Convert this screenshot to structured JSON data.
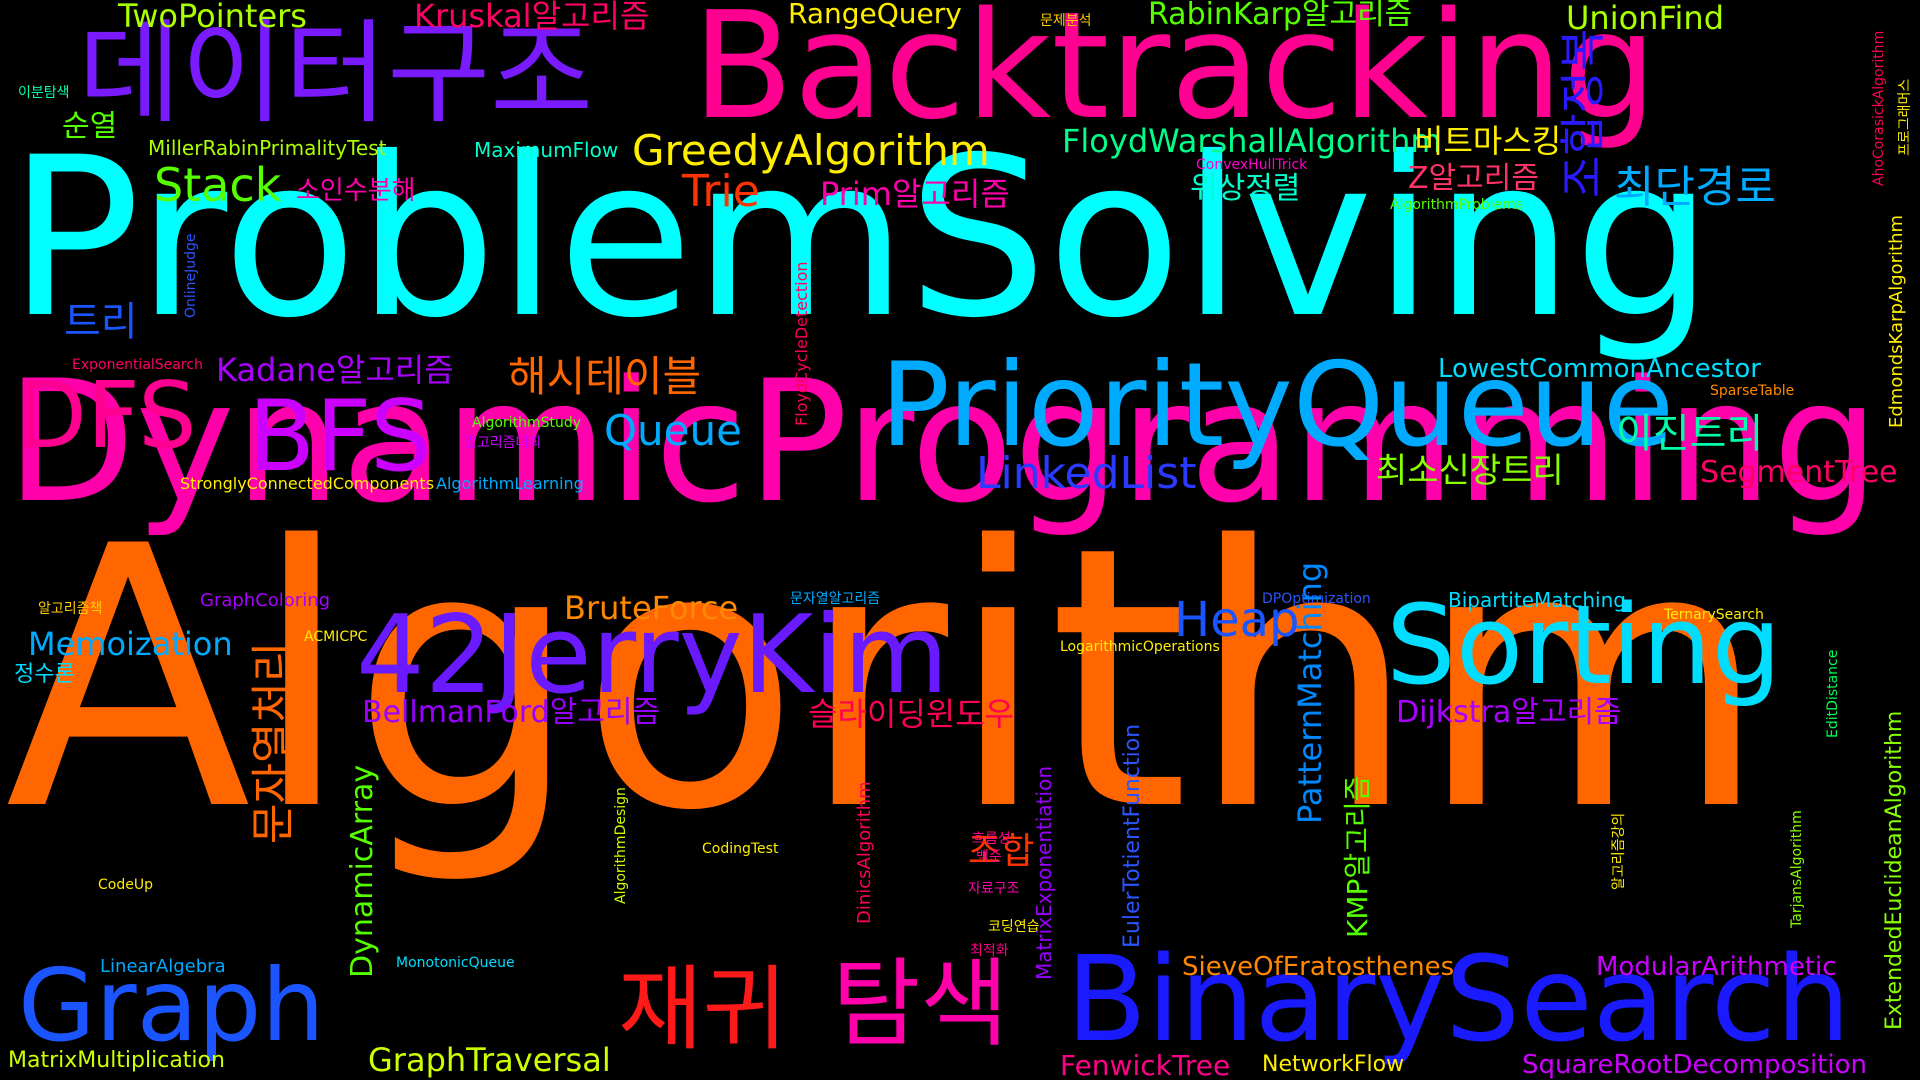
{
  "words": [
    {
      "text": "Algorithm",
      "color": "#ff6600"
    },
    {
      "text": "ProblemSolving",
      "color": "#00ffff"
    },
    {
      "text": "DynamicProgramming",
      "color": "#ff00aa"
    },
    {
      "text": "Backtracking",
      "color": "#ff0090"
    },
    {
      "text": "데이터구조",
      "color": "#7a1aff"
    },
    {
      "text": "PriorityQueue",
      "color": "#00aaff"
    },
    {
      "text": "BinarySearch",
      "color": "#1a1aff"
    },
    {
      "text": "42JerryKim",
      "color": "#6a1aff"
    },
    {
      "text": "Sorting",
      "color": "#00ddff"
    },
    {
      "text": "Graph",
      "color": "#1a55ff"
    },
    {
      "text": "재귀",
      "color": "#ff1a1a"
    },
    {
      "text": "탐색",
      "color": "#ff00aa"
    },
    {
      "text": "DFS",
      "color": "#ff0090"
    },
    {
      "text": "BFS",
      "color": "#cc00ff"
    },
    {
      "text": "TwoPointers",
      "color": "#aaff00"
    },
    {
      "text": "Kruskal알고리즘",
      "color": "#ff0066"
    },
    {
      "text": "RangeQuery",
      "color": "#ffee00"
    },
    {
      "text": "문제분석",
      "color": "#ffcc00"
    },
    {
      "text": "RabinKarp알고리즘",
      "color": "#55ff00"
    },
    {
      "text": "UnionFind",
      "color": "#aaff00"
    },
    {
      "text": "이분탐색",
      "color": "#00ffaa"
    },
    {
      "text": "AhoCorasickAlgorithm",
      "color": "#ff0055"
    },
    {
      "text": "프로그래머스",
      "color": "#ffee00"
    },
    {
      "text": "조합정복",
      "color": "#2a1aff"
    },
    {
      "text": "순열",
      "color": "#55ff00"
    },
    {
      "text": "MillerRabinPrimalityTest",
      "color": "#aaff00"
    },
    {
      "text": "MaximumFlow",
      "color": "#00ffcc"
    },
    {
      "text": "GreedyAlgorithm",
      "color": "#ffee00"
    },
    {
      "text": "FloydWarshallAlgorithm",
      "color": "#00ff88"
    },
    {
      "text": "비트마스킹",
      "color": "#ffee00"
    },
    {
      "text": "Stack",
      "color": "#55ff00"
    },
    {
      "text": "소인수분해",
      "color": "#ff00aa"
    },
    {
      "text": "Trie",
      "color": "#ff3300"
    },
    {
      "text": "Prim알고리즘",
      "color": "#ff00aa"
    },
    {
      "text": "ConvexHullTrick",
      "color": "#ff00cc"
    },
    {
      "text": "위상정렬",
      "color": "#00ffcc"
    },
    {
      "text": "Z알고리즘",
      "color": "#ff3366"
    },
    {
      "text": "AlgorithmProblems",
      "color": "#55ff00"
    },
    {
      "text": "최단경로",
      "color": "#00aaff"
    },
    {
      "text": "EdmondsKarpAlgorithm",
      "color": "#ffee00"
    },
    {
      "text": "OnlineJudge",
      "color": "#2a55ff"
    },
    {
      "text": "트리",
      "color": "#1a55ff"
    },
    {
      "text": "FloydCycleDetection",
      "color": "#ff0055"
    },
    {
      "text": "ExponentialSearch",
      "color": "#ff0066"
    },
    {
      "text": "Kadane알고리즘",
      "color": "#aa00ff"
    },
    {
      "text": "해시테이블",
      "color": "#ff6600"
    },
    {
      "text": "LowestCommonAncestor",
      "color": "#00ddff"
    },
    {
      "text": "SparseTable",
      "color": "#ff8800"
    },
    {
      "text": "Queue",
      "color": "#00aaff"
    },
    {
      "text": "AlgorithmStudy",
      "color": "#55ff00"
    },
    {
      "text": "알고리즘대회",
      "color": "#cc00ff"
    },
    {
      "text": "이진트리",
      "color": "#00ffaa"
    },
    {
      "text": "LinkedList",
      "color": "#2a3aff"
    },
    {
      "text": "최소신장트리",
      "color": "#88ff00"
    },
    {
      "text": "StronglyConnectedComponents",
      "color": "#ffee00"
    },
    {
      "text": "AlgorithmLearning",
      "color": "#00aaff"
    },
    {
      "text": "SegmentTree",
      "color": "#ff0066"
    },
    {
      "text": "알고리즘책",
      "color": "#ffcc00"
    },
    {
      "text": "GraphColoring",
      "color": "#aa00ff"
    },
    {
      "text": "BruteForce",
      "color": "#ff8800"
    },
    {
      "text": "문자열알고리즘",
      "color": "#00aaff"
    },
    {
      "text": "Heap",
      "color": "#1a55ff"
    },
    {
      "text": "DPOptimization",
      "color": "#2a55ff"
    },
    {
      "text": "BipartiteMatching",
      "color": "#00ddff"
    },
    {
      "text": "TernarySearch",
      "color": "#ffee00"
    },
    {
      "text": "Memoization",
      "color": "#00aaff"
    },
    {
      "text": "문자열처리",
      "color": "#ff6600"
    },
    {
      "text": "ACMICPC",
      "color": "#ffee00"
    },
    {
      "text": "정수론",
      "color": "#00ddff"
    },
    {
      "text": "LogarithmicOperations",
      "color": "#ffee00"
    },
    {
      "text": "BellmanFord알고리즘",
      "color": "#9a00ff"
    },
    {
      "text": "슬라이딩윈도우",
      "color": "#ff0055"
    },
    {
      "text": "EulerTotientFunction",
      "color": "#2a55ff"
    },
    {
      "text": "PatternMatching",
      "color": "#0088ff"
    },
    {
      "text": "Dijkstra알고리즘",
      "color": "#aa00ff"
    },
    {
      "text": "EditDistance",
      "color": "#00ff55"
    },
    {
      "text": "DynamicArray",
      "color": "#55ff00"
    },
    {
      "text": "MatrixExponentiation",
      "color": "#9a00ff"
    },
    {
      "text": "KMP알고리즘",
      "color": "#55ff00"
    },
    {
      "text": "ExtendedEuclideanAlgorithm",
      "color": "#88ff00"
    },
    {
      "text": "AlgorithmDesign",
      "color": "#ccff00"
    },
    {
      "text": "DinicsAlgorithm",
      "color": "#ff0055"
    },
    {
      "text": "CodingTest",
      "color": "#ffee00"
    },
    {
      "text": "흐름성",
      "color": "#ff0088"
    },
    {
      "text": "백준",
      "color": "#ff0088"
    },
    {
      "text": "자료구조",
      "color": "#ff00aa"
    },
    {
      "text": "알고리즘강의",
      "color": "#ffee00"
    },
    {
      "text": "TarjansAlgorithm",
      "color": "#88ff00"
    },
    {
      "text": "CodeUp",
      "color": "#ffee00"
    },
    {
      "text": "조합",
      "color": "#ff3300"
    },
    {
      "text": "코딩연습",
      "color": "#ffee00"
    },
    {
      "text": "LinearAlgebra",
      "color": "#00aaff"
    },
    {
      "text": "MonotonicQueue",
      "color": "#00ddff"
    },
    {
      "text": "최적화",
      "color": "#ff0088"
    },
    {
      "text": "SieveOfEratosthenes",
      "color": "#ff8800"
    },
    {
      "text": "ModularArithmetic",
      "color": "#cc00ff"
    },
    {
      "text": "MatrixMultiplication",
      "color": "#ccff00"
    },
    {
      "text": "GraphTraversal",
      "color": "#ccff00"
    },
    {
      "text": "FenwickTree",
      "color": "#ff0088"
    },
    {
      "text": "NetworkFlow",
      "color": "#ffee00"
    },
    {
      "text": "SquareRootDecomposition",
      "color": "#cc00ff"
    }
  ]
}
